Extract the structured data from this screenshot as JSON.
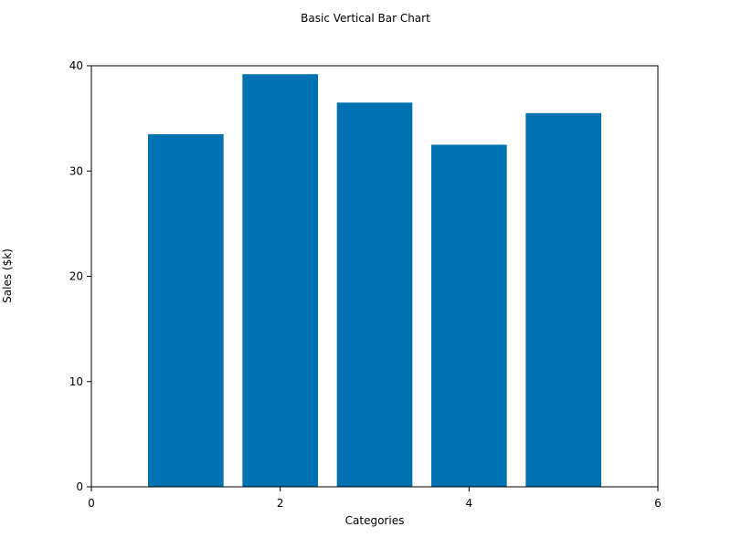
{
  "chart_data": {
    "type": "bar",
    "title": "Basic Vertical Bar Chart",
    "xlabel": "Categories",
    "ylabel": "Sales ($k)",
    "x": [
      1,
      2,
      3,
      4,
      5
    ],
    "values": [
      33.5,
      39.2,
      36.5,
      32.5,
      35.5
    ],
    "bar_width": 0.8,
    "xlim": [
      0,
      6
    ],
    "ylim": [
      0,
      40
    ],
    "xticks": [
      0,
      2,
      4,
      6
    ],
    "yticks": [
      0,
      10,
      20,
      30,
      40
    ],
    "grid": false,
    "colors": {
      "bar": "#0072b2",
      "axis": "#000000"
    }
  }
}
